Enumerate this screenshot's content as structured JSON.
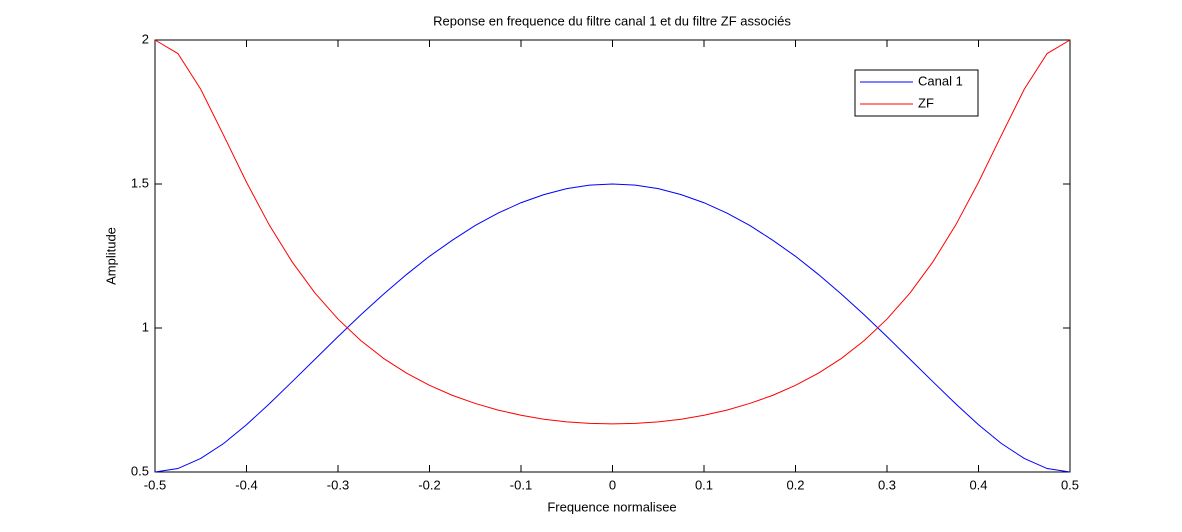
{
  "chart_data": {
    "type": "line",
    "title": "Reponse en frequence du filtre canal 1 et du filtre ZF associés",
    "xlabel": "Frequence normalisee",
    "ylabel": "Amplitude",
    "x": [
      -0.5,
      -0.475,
      -0.45,
      -0.425,
      -0.4,
      -0.375,
      -0.35,
      -0.325,
      -0.3,
      -0.275,
      -0.25,
      -0.225,
      -0.2,
      -0.175,
      -0.15,
      -0.125,
      -0.1,
      -0.075,
      -0.05,
      -0.025,
      0,
      0.025,
      0.05,
      0.075,
      0.1,
      0.125,
      0.15,
      0.175,
      0.2,
      0.225,
      0.25,
      0.275,
      0.3,
      0.325,
      0.35,
      0.375,
      0.4,
      0.425,
      0.45,
      0.475,
      0.5
    ],
    "series": [
      {
        "name": "Canal 1",
        "color": "#0000ff",
        "values": [
          0.5,
          0.512,
          0.547,
          0.599,
          0.664,
          0.737,
          0.814,
          0.892,
          0.97,
          1.046,
          1.118,
          1.186,
          1.249,
          1.305,
          1.356,
          1.399,
          1.435,
          1.463,
          1.484,
          1.496,
          1.5,
          1.496,
          1.484,
          1.463,
          1.435,
          1.399,
          1.356,
          1.305,
          1.249,
          1.186,
          1.118,
          1.046,
          0.97,
          0.892,
          0.814,
          0.737,
          0.664,
          0.599,
          0.547,
          0.512,
          0.5
        ]
      },
      {
        "name": "ZF",
        "color": "#ff0000",
        "values": [
          2,
          1.953,
          1.829,
          1.669,
          1.506,
          1.357,
          1.229,
          1.121,
          1.031,
          0.956,
          0.894,
          0.843,
          0.801,
          0.766,
          0.738,
          0.715,
          0.697,
          0.683,
          0.674,
          0.669,
          0.667,
          0.669,
          0.674,
          0.683,
          0.697,
          0.715,
          0.738,
          0.766,
          0.801,
          0.843,
          0.894,
          0.956,
          1.031,
          1.121,
          1.229,
          1.357,
          1.506,
          1.669,
          1.829,
          1.953,
          2
        ]
      }
    ],
    "xlim": [
      -0.5,
      0.5
    ],
    "xticks": [
      -0.5,
      -0.4,
      -0.3,
      -0.2,
      -0.1,
      0,
      0.1,
      0.2,
      0.3,
      0.4,
      0.5
    ],
    "ylim": [
      0.5,
      2
    ],
    "yticks": [
      0.5,
      1,
      1.5,
      2
    ],
    "grid": false,
    "legend": "upper right"
  }
}
